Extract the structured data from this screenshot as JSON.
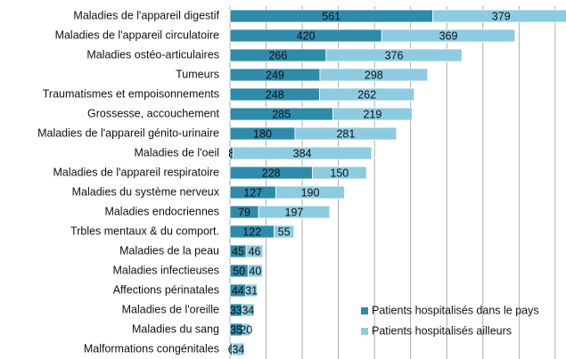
{
  "chart_data": {
    "type": "stacked-bar-horizontal",
    "categories": [
      "Maladies de l'appareil digestif",
      "Maladies de l'appareil circulatoire",
      "Maladies ostéo-articulaires",
      "Tumeurs",
      "Traumatismes et empoisonnements",
      "Grossesse, accouchement",
      "Maladies de l'appareil génito-urinaire",
      "Maladies de l'oeil",
      "Maladies de l'appareil respiratoire",
      "Maladies du système nerveux",
      "Maladies endocriennes",
      "Trbles mentaux & du comport.",
      "Maladies de la peau",
      "Maladies infectieuses",
      "Affections périnatales",
      "Maladies de l'oreille",
      "Maladies du sang",
      "Malformations congénitales"
    ],
    "series": [
      {
        "name": "Patients hospitalisés dans le pays",
        "color": "#2f8ba9",
        "values": [
          561,
          420,
          266,
          249,
          248,
          285,
          180,
          8,
          228,
          127,
          79,
          122,
          45,
          50,
          44,
          33,
          35,
          6
        ]
      },
      {
        "name": "Patients hospitalisés ailleurs",
        "color": "#8dcbe0",
        "values": [
          379,
          369,
          376,
          298,
          262,
          219,
          281,
          384,
          150,
          190,
          197,
          55,
          46,
          40,
          31,
          34,
          20,
          34
        ]
      }
    ],
    "xlim": [
      0,
      930
    ],
    "xticks": [
      0,
      100,
      200,
      300,
      400,
      500,
      600,
      700,
      800,
      900
    ],
    "grid": true,
    "legend": "lower right"
  }
}
